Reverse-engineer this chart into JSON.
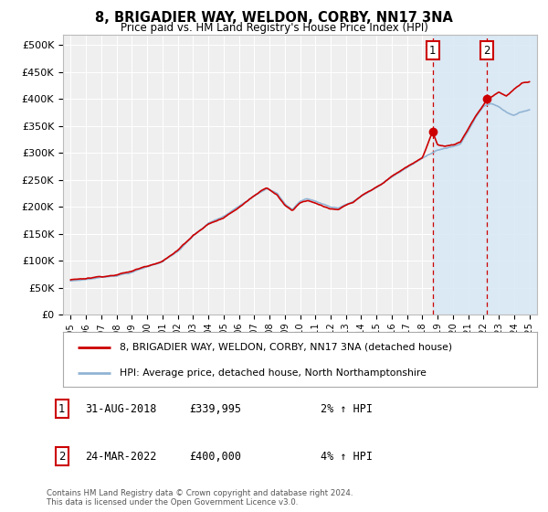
{
  "title": "8, BRIGADIER WAY, WELDON, CORBY, NN17 3NA",
  "subtitle": "Price paid vs. HM Land Registry's House Price Index (HPI)",
  "ytick_values": [
    0,
    50000,
    100000,
    150000,
    200000,
    250000,
    300000,
    350000,
    400000,
    450000,
    500000
  ],
  "ylim": [
    0,
    520000
  ],
  "xlim_start": 1994.5,
  "xlim_end": 2025.5,
  "background_color": "#ffffff",
  "plot_bg_color": "#efefef",
  "grid_color": "#ffffff",
  "hpi_line_color": "#92b4d4",
  "price_line_color": "#cc0000",
  "marker_color": "#cc0000",
  "sale1_x": 2018.67,
  "sale1_y": 339995,
  "sale2_x": 2022.23,
  "sale2_y": 400000,
  "shade_color": "#d8e8f5",
  "shade_alpha": 0.85,
  "dashed_color": "#cc0000",
  "legend_line1": "8, BRIGADIER WAY, WELDON, CORBY, NN17 3NA (detached house)",
  "legend_line2": "HPI: Average price, detached house, North Northamptonshire",
  "table_rows": [
    [
      "1",
      "31-AUG-2018",
      "£339,995",
      "2% ↑ HPI"
    ],
    [
      "2",
      "24-MAR-2022",
      "£400,000",
      "4% ↑ HPI"
    ]
  ],
  "footnote": "Contains HM Land Registry data © Crown copyright and database right 2024.\nThis data is licensed under the Open Government Licence v3.0.",
  "xtick_years": [
    1995,
    1996,
    1997,
    1998,
    1999,
    2000,
    2001,
    2002,
    2003,
    2004,
    2005,
    2006,
    2007,
    2008,
    2009,
    2010,
    2011,
    2012,
    2013,
    2014,
    2015,
    2016,
    2017,
    2018,
    2019,
    2020,
    2021,
    2022,
    2023,
    2024,
    2025
  ]
}
